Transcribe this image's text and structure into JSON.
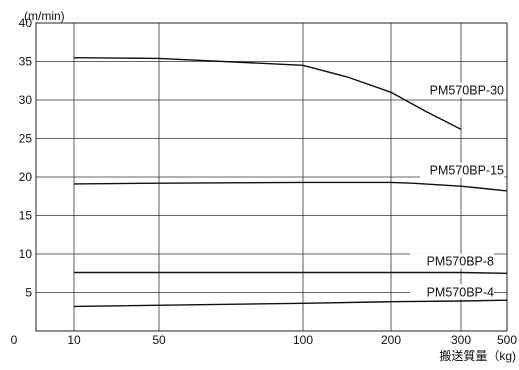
{
  "chart_data": {
    "type": "line",
    "title": "",
    "ylabel": "(m/min)",
    "xlabel": "搬送質量（kg)",
    "ylim": [
      0,
      40
    ],
    "grid": true,
    "x_axis": {
      "ticks": [
        0,
        10,
        50,
        100,
        200,
        300,
        500
      ],
      "tick_labels": [
        "0",
        "10",
        "50",
        "100",
        "200",
        "300",
        "500"
      ]
    },
    "y_axis": {
      "ticks": [
        0,
        5,
        10,
        15,
        20,
        25,
        30,
        35,
        40
      ],
      "tick_labels": [
        "",
        "5",
        "10",
        "15",
        "20",
        "25",
        "30",
        "35",
        "40"
      ]
    },
    "series": [
      {
        "name": "PM570BP-30",
        "x": [
          10,
          50,
          100,
          150,
          200,
          250,
          300
        ],
        "y": [
          35.5,
          35.4,
          34.5,
          33.0,
          31.0,
          28.5,
          26.2
        ]
      },
      {
        "name": "PM570BP-15",
        "x": [
          10,
          50,
          100,
          150,
          200,
          230,
          300,
          400,
          500
        ],
        "y": [
          19.1,
          19.2,
          19.3,
          19.3,
          19.3,
          19.2,
          18.8,
          18.5,
          18.2
        ]
      },
      {
        "name": "PM570BP-8",
        "x": [
          10,
          100,
          200,
          300,
          500
        ],
        "y": [
          7.6,
          7.6,
          7.6,
          7.6,
          7.5
        ]
      },
      {
        "name": "PM570BP-4",
        "x": [
          10,
          100,
          200,
          300,
          500
        ],
        "y": [
          3.2,
          3.6,
          3.8,
          3.9,
          4.0
        ]
      }
    ]
  }
}
